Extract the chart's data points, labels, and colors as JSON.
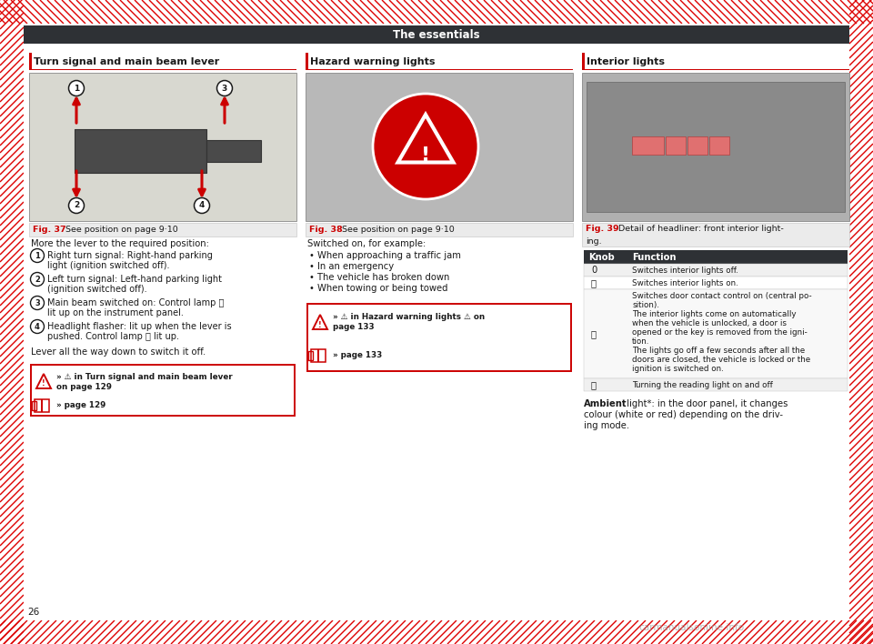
{
  "title": "The essentials",
  "title_bg": "#2e3135",
  "title_fg": "#ffffff",
  "page_number": "26",
  "red": "#cc0000",
  "dark": "#2e3135",
  "text": "#1a1a1a",
  "light_gray": "#f0f0f0",
  "hatch_color": "#dd0000",
  "col1_header": "Turn signal and main beam lever",
  "col1_fig_label": "Fig. 37",
  "col1_fig_caption": "See position on page 9·10",
  "col1_intro": "More the lever to the required position:",
  "col1_items": [
    "Right turn signal: Right-hand parking\nlight (ignition switched off).",
    "Left turn signal: Left-hand parking light\n(ignition switched off).",
    "Main beam switched on: Control lamp ⦾\nlit up on the instrument panel.",
    "Headlight flasher: lit up when the lever is\npushed. Control lamp ⦾ lit up."
  ],
  "col1_lever_note": "Lever all the way down to switch it off.",
  "col1_ref1": "» ⚠ in Turn signal and main beam lever\non page 129",
  "col1_ref2": "» page 129",
  "col2_header": "Hazard warning lights",
  "col2_fig_label": "Fig. 38",
  "col2_fig_caption": "See position on page 9·10",
  "col2_intro": "Switched on, for example:",
  "col2_bullets": [
    "• When approaching a traffic jam",
    "• In an emergency",
    "• The vehicle has broken down",
    "• When towing or being towed"
  ],
  "col2_ref1a": "» ⚠ in Hazard warning lights ⚠ on",
  "col2_ref1b": "page 133",
  "col2_ref2": "» page 133",
  "col3_header": "Interior lights",
  "col3_fig_label": "Fig. 39",
  "col3_fig_caption_l1": "Detail of headliner: front interior light-",
  "col3_fig_caption_l2": "ing.",
  "col3_th": [
    "Knob",
    "Function"
  ],
  "col3_rows": [
    [
      "0",
      "Switches interior lights off."
    ],
    [
      "⦾",
      "Switches interior lights on."
    ],
    [
      "⦾",
      "Switches door contact control on (central po-\nsition).\nThe interior lights come on automatically\nwhen the vehicle is unlocked, a door is\nopened or the key is removed from the igni-\ntion.\nThe lights go off a few seconds after all the\ndoors are closed, the vehicle is locked or the\nignition is switched on."
    ],
    [
      "⨉",
      "Turning the reading light on and off"
    ]
  ],
  "col3_ambient_bold": "Ambient",
  "col3_ambient_rest": " light*: in the door panel, it changes\ncolour (white or red) depending on the driv-\ning mode."
}
